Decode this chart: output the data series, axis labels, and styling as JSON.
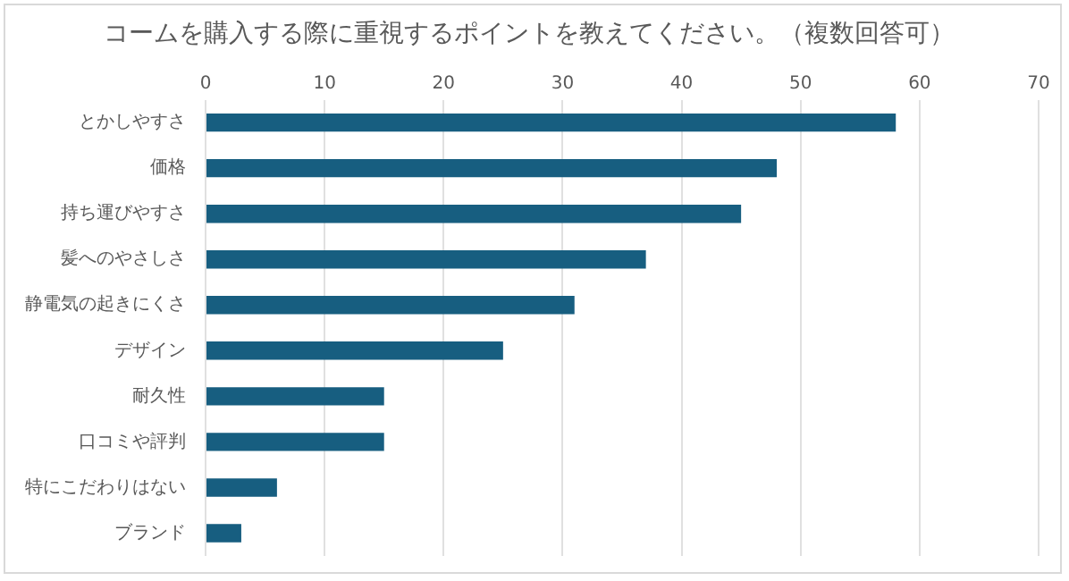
{
  "chart_data": {
    "type": "bar",
    "orientation": "horizontal",
    "title": "コームを購入する際に重視するポイントを教えてください。（複数回答可）",
    "categories": [
      "とかしやすさ",
      "価格",
      "持ち運びやすさ",
      "髪へのやさしさ",
      "静電気の起きにくさ",
      "デザイン",
      "耐久性",
      "口コミや評判",
      "特にこだわりはない",
      "ブランド"
    ],
    "values": [
      58,
      48,
      45,
      37,
      31,
      25,
      15,
      15,
      6,
      3
    ],
    "color": "#175e80",
    "xlim": [
      0,
      70
    ],
    "xticks": [
      0,
      10,
      20,
      30,
      40,
      50,
      60,
      70
    ],
    "grid": "x",
    "legend": false
  }
}
